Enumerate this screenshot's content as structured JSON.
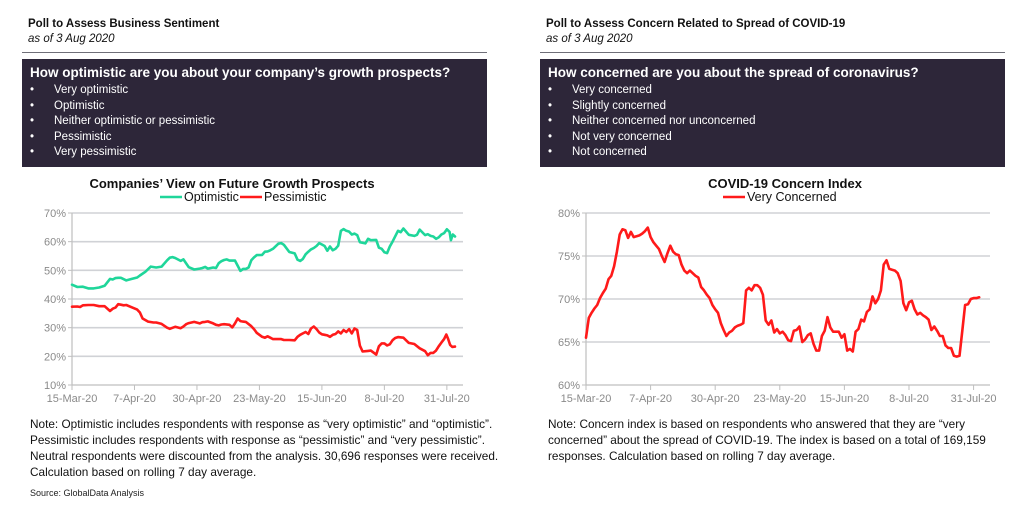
{
  "left_panel": {
    "title": "Poll to Assess Business Sentiment",
    "subtitle": "as of 3 Aug 2020",
    "question": "How optimistic are you about your company’s growth prospects?",
    "options": [
      "Very optimistic",
      "Optimistic",
      "Neither optimistic or pessimistic",
      "Pessimistic",
      "Very pessimistic"
    ],
    "bullet": "•",
    "note": "Note: Optimistic includes respondents with response as “very optimistic” and “optimistic”. Pessimistic includes respondents with response as “pessimistic” and “very pessimistic”. Neutral respondents were discounted from the analysis. 30,696 responses were received. Calculation based on rolling 7 day average.",
    "source": "Source: GlobalData Analysis"
  },
  "right_panel": {
    "title": "Poll to Assess Concern Related to Spread of COVID-19",
    "subtitle": "as of 3 Aug 2020",
    "question": "How concerned are you about the spread of coronavirus?",
    "options": [
      "Very concerned",
      "Slightly concerned",
      "Neither concerned nor unconcerned",
      "Not very concerned",
      "Not concerned"
    ],
    "bullet": "•",
    "note": "Note: Concern index is based on respondents who answered that they are “very concerned” about the spread of COVID-19. The index is based on a total of 169,159 responses. Calculation based on rolling 7 day average."
  },
  "chart_data": [
    {
      "type": "line",
      "title": "Companies’ View on Future Growth Prospects",
      "xlabel": "",
      "ylabel": "",
      "x_ticks": [
        "15-Mar-20",
        "7-Apr-20",
        "30-Apr-20",
        "23-May-20",
        "15-Jun-20",
        "8-Jul-20",
        "31-Jul-20"
      ],
      "x_range_days": [
        0,
        141
      ],
      "tick_interval_days": 23,
      "y_ticks": [
        "10%",
        "20%",
        "30%",
        "40%",
        "50%",
        "60%",
        "70%"
      ],
      "ylim": [
        10,
        70
      ],
      "grid": true,
      "legend": "top-center",
      "series": [
        {
          "name": "Optimistic",
          "color": "#1fd69a",
          "x_days": [
            0,
            2,
            4,
            6,
            8,
            10,
            12,
            14,
            15,
            16,
            17,
            18,
            20,
            22,
            24,
            25,
            27,
            29,
            31,
            33,
            35,
            36,
            37,
            38,
            40,
            41,
            43,
            45,
            47,
            48,
            49,
            50,
            52,
            53,
            54,
            55,
            56,
            57,
            58,
            60,
            62,
            63,
            64,
            65,
            66,
            67,
            68,
            70,
            71,
            72,
            73,
            74,
            76,
            77,
            78,
            80,
            82,
            83,
            84,
            85,
            86,
            87,
            88,
            89,
            90,
            91,
            92,
            93,
            94,
            95,
            96,
            97,
            98,
            99,
            100,
            101,
            102,
            103,
            104,
            105,
            106,
            108,
            109,
            110,
            112,
            113,
            114,
            115,
            116,
            117,
            118,
            120,
            121,
            122,
            124,
            126,
            127,
            128,
            130,
            131,
            132,
            133,
            134,
            135,
            136,
            137,
            138,
            139,
            140,
            141
          ],
          "values": [
            45,
            44.2,
            44.3,
            43.7,
            43.7,
            44,
            44.6,
            47,
            46.8,
            47.3,
            47.4,
            47.4,
            46.5,
            47,
            47.5,
            48.2,
            49.5,
            51.3,
            51,
            51.3,
            53.5,
            54.4,
            54.6,
            54.3,
            53.3,
            53.8,
            51.1,
            50.3,
            50.6,
            50.8,
            51.2,
            50.6,
            51,
            50.8,
            52.5,
            53.2,
            53.6,
            53.8,
            53.4,
            53.4,
            49.8,
            50.5,
            50.5,
            51,
            53.5,
            54.5,
            55.3,
            55.4,
            56.5,
            56.6,
            57,
            57.5,
            59.3,
            59.5,
            58.9,
            56.4,
            55.9,
            53.7,
            53.3,
            54,
            55.6,
            56.5,
            57.3,
            57.8,
            58.5,
            59.5,
            59,
            58.5,
            56.8,
            58.3,
            57,
            57.5,
            58.6,
            63.8,
            64.4,
            63.8,
            63.5,
            62.5,
            62.8,
            62.3,
            59.8,
            59.4,
            61,
            60.5,
            60.6,
            57.9,
            57.5,
            56.3,
            56,
            58.3,
            60,
            63.8,
            63.3,
            64.6,
            62.4,
            62,
            62.4,
            64.2,
            62.3,
            62.6,
            62,
            61.8,
            61,
            61.5,
            62.5,
            63,
            64.3,
            63.4,
            61.5,
            58.6
          ],
          "tail": [
            [
              139.5,
              60.5
            ],
            [
              140.2,
              62.5
            ],
            [
              141,
              61.8
            ]
          ]
        },
        {
          "name": "Pessimistic",
          "color": "#ff1a1a",
          "x_days": [
            0,
            2,
            3,
            4,
            6,
            8,
            10,
            12,
            14,
            15,
            16,
            17,
            18,
            19,
            20,
            22,
            24,
            25,
            26,
            28,
            30,
            31,
            33,
            35,
            36,
            38,
            40,
            41,
            42,
            43,
            45,
            47,
            48,
            49,
            50,
            52,
            53,
            54,
            55,
            56,
            58,
            59,
            60,
            61,
            62,
            63,
            64,
            66,
            67,
            68,
            70,
            71,
            72,
            73,
            74,
            75,
            76,
            77,
            78,
            80,
            82,
            83,
            84,
            85,
            86,
            87,
            88,
            89,
            90,
            91,
            92,
            93,
            94,
            95,
            96,
            97,
            98,
            99,
            100,
            101,
            102,
            103,
            104,
            105,
            106,
            107,
            108,
            109,
            110,
            112,
            113,
            114,
            115,
            116,
            117,
            118,
            119,
            120,
            122,
            124,
            126,
            128,
            130,
            131,
            132,
            133,
            134,
            135,
            136,
            137,
            138,
            139,
            140,
            141
          ],
          "values": [
            37.3,
            37.4,
            37.2,
            37.8,
            37.9,
            37.9,
            37.5,
            37.5,
            35.8,
            36.6,
            37,
            38.2,
            38,
            37.8,
            37.9,
            37.1,
            36.3,
            35.3,
            33.2,
            32.1,
            31.8,
            31.8,
            31.3,
            30,
            29.6,
            30.3,
            29.8,
            30.4,
            31.2,
            31.6,
            32,
            31.5,
            31.9,
            32,
            32.2,
            31.5,
            31,
            30.8,
            31.1,
            31.2,
            31,
            30.1,
            31.5,
            33.2,
            32.3,
            32.1,
            32,
            30.5,
            29.5,
            28.2,
            26.8,
            26.5,
            27,
            26.5,
            26,
            26,
            26,
            26,
            25.7,
            25.7,
            25.6,
            26.8,
            27.5,
            28,
            28.5,
            27.8,
            29.7,
            30.4,
            29.5,
            28.3,
            27.7,
            27.5,
            27.3,
            26.8,
            27.5,
            27.8,
            28.7,
            28,
            29.2,
            28.5,
            29.5,
            28,
            29.7,
            29.2,
            23.7,
            21.7,
            21.8,
            21.9,
            22,
            20.6,
            23.5,
            24.5,
            24.5,
            23.8,
            24.2,
            25.6,
            26.4,
            26.7,
            26.5,
            24.5,
            21.5,
            21,
            22.2,
            23.5,
            24,
            23.5,
            22.5,
            21.5,
            21.8,
            21.6,
            22.2,
            23,
            24,
            24.5
          ],
          "tail": [
            [
              124,
              24.7
            ],
            [
              126,
              24.3
            ],
            [
              128,
              22.8
            ],
            [
              130,
              21.8
            ],
            [
              131,
              20.4
            ],
            [
              132,
              21.2
            ],
            [
              133,
              21.2
            ],
            [
              134,
              22
            ],
            [
              135,
              23.5
            ],
            [
              136,
              24.8
            ],
            [
              137,
              26
            ],
            [
              137.8,
              27.6
            ],
            [
              138.5,
              26
            ],
            [
              139.2,
              24
            ],
            [
              140,
              23.3
            ],
            [
              141,
              23.4
            ]
          ]
        }
      ]
    },
    {
      "type": "line",
      "title": "COVID-19 Concern Index",
      "xlabel": "",
      "ylabel": "",
      "x_ticks": [
        "15-Mar-20",
        "7-Apr-20",
        "30-Apr-20",
        "23-May-20",
        "15-Jun-20",
        "8-Jul-20",
        "31-Jul-20"
      ],
      "x_range_days": [
        0,
        141
      ],
      "tick_interval_days": 23,
      "y_ticks": [
        "60%",
        "65%",
        "70%",
        "75%",
        "80%"
      ],
      "ylim": [
        60,
        80
      ],
      "grid": true,
      "legend": "top-center",
      "series": [
        {
          "name": "Very Concerned",
          "color": "#ff1a1a",
          "x_days": [
            0,
            1,
            2,
            3,
            4,
            5,
            6,
            7,
            8,
            9,
            10,
            11,
            12,
            13,
            14,
            15,
            16,
            17,
            18,
            19,
            20,
            21,
            22,
            23,
            24,
            25,
            26,
            27,
            28,
            29,
            30,
            31,
            32,
            33,
            34,
            35,
            36,
            37,
            38,
            39,
            40,
            41,
            42,
            43,
            44,
            45,
            46,
            47,
            48,
            49,
            50,
            51,
            52,
            53,
            54,
            55,
            56,
            57,
            58,
            59,
            60,
            61,
            62,
            63,
            64,
            65,
            66,
            67,
            68,
            69,
            70,
            71,
            72,
            73,
            74,
            75,
            76,
            77,
            78,
            79,
            80,
            81,
            82,
            83,
            84,
            85,
            86,
            87,
            88,
            89,
            90,
            91,
            92,
            93,
            94,
            95,
            96,
            97,
            98,
            99,
            100,
            101,
            102,
            103,
            104,
            105,
            106,
            107,
            108,
            109,
            110,
            111,
            112,
            113,
            114,
            115,
            116,
            117,
            118,
            119,
            120,
            121,
            122,
            123,
            124,
            125,
            126,
            127,
            128,
            129,
            130,
            131,
            132,
            133,
            134,
            135,
            136,
            137,
            138,
            139,
            140,
            141
          ],
          "values": [
            65.5,
            67.8,
            68.4,
            68.9,
            69.3,
            70.1,
            70.7,
            71.2,
            72.3,
            72.7,
            73.8,
            75.5,
            77.5,
            78.1,
            78.0,
            77.1,
            77.8,
            77.2,
            77.3,
            77.4,
            77.6,
            77.9,
            78.3,
            77.2,
            76.6,
            76.2,
            75.8,
            75.0,
            74.3,
            75.3,
            76.2,
            75.5,
            75.2,
            75.1,
            74.0,
            73.3,
            73.0,
            73.3,
            73.0,
            72.7,
            72.5,
            71.4,
            71.0,
            70.5,
            70.1,
            69.3,
            68.8,
            68.4,
            67.2,
            66.4,
            65.7,
            66.1,
            66.3,
            66.7,
            66.9,
            67.0,
            67.2,
            71.0,
            71.3,
            71.0,
            71.6,
            71.6,
            71.3,
            70.5,
            67.5,
            67.0,
            67.5,
            66.1,
            66.5,
            66.0,
            66.2,
            65.8,
            65.2,
            65.1,
            66.3,
            66.4,
            66.8,
            65.0,
            65.3,
            65.8,
            66.0,
            64.8,
            64.0,
            64.0,
            65.7,
            66.3,
            67.9,
            66.7,
            66.2,
            66.2,
            66.2,
            65.5,
            65.9,
            64.0,
            64.2,
            63.9,
            66.2,
            66.5,
            67.6,
            67.4,
            68.5,
            68.8,
            70.3,
            69.5,
            70.0,
            71.0,
            74.0,
            74.5,
            73.5,
            73.4,
            73.3,
            73.0,
            72.1,
            69.5,
            68.7,
            69.6,
            69.8,
            68.8,
            68.2,
            68.4,
            68.1,
            67.9,
            67.6,
            66.4,
            66.8,
            66.3,
            65.7,
            65.7,
            64.6,
            64.3,
            64.3,
            63.4,
            63.3,
            63.4,
            66.3,
            69.3,
            69.4,
            70.0,
            70.1,
            70.1,
            70.2
          ]
        }
      ]
    }
  ]
}
